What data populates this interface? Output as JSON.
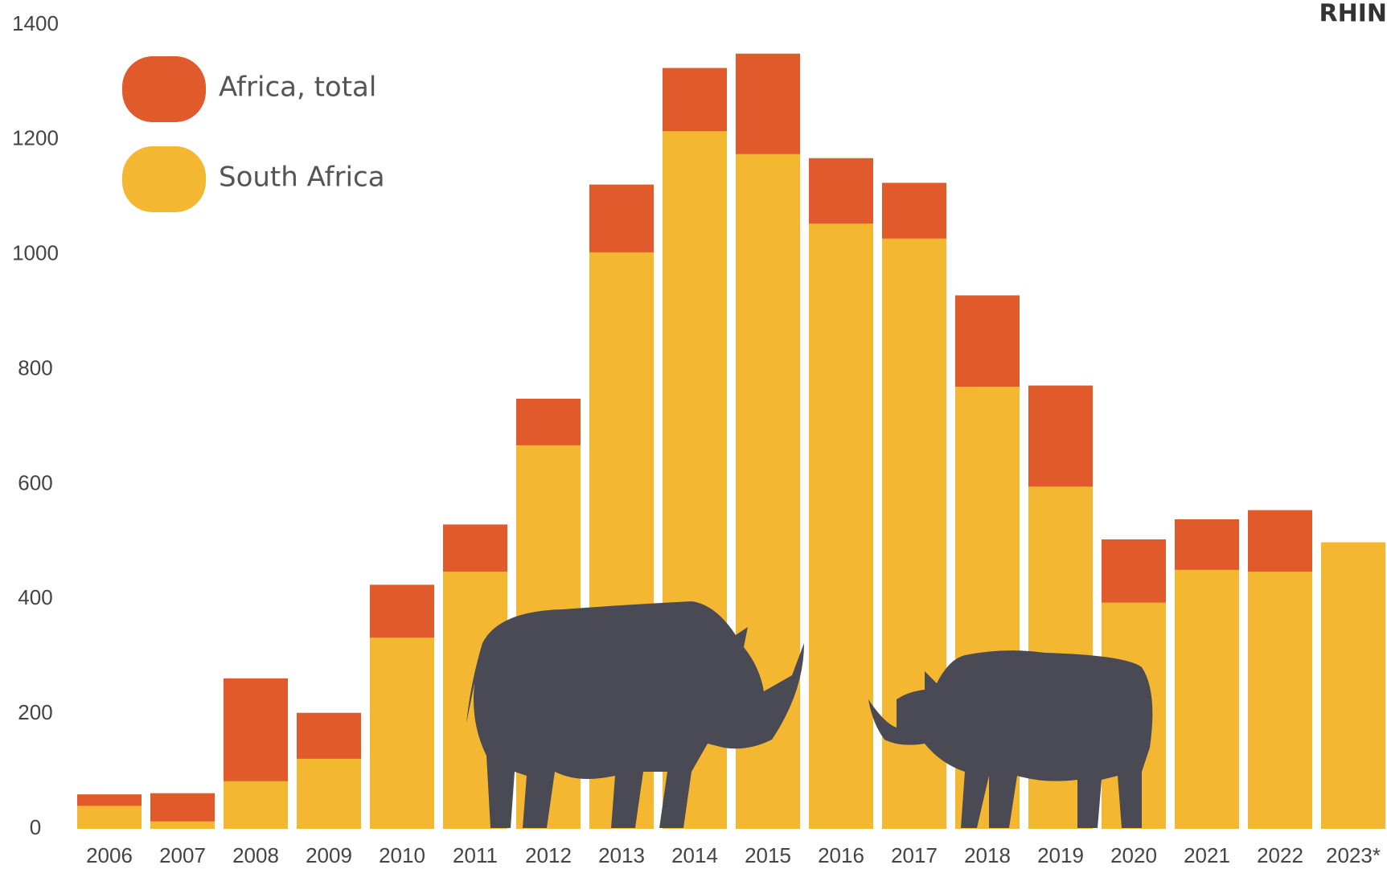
{
  "chart_data": {
    "type": "bar",
    "logo": "RHIN",
    "categories": [
      "2006",
      "2007",
      "2008",
      "2009",
      "2010",
      "2011",
      "2012",
      "2013",
      "2014",
      "2015",
      "2016",
      "2017",
      "2018",
      "2019",
      "2020",
      "2021",
      "2022",
      "2023*"
    ],
    "series": [
      {
        "name": "Africa, total",
        "color": "#e05a2b",
        "values": [
          60,
          62,
          262,
          202,
          425,
          530,
          749,
          1122,
          1325,
          1350,
          1168,
          1125,
          929,
          772,
          504,
          539,
          555,
          null
        ]
      },
      {
        "name": "South Africa",
        "color": "#f4b731",
        "values": [
          40,
          13,
          83,
          122,
          333,
          448,
          668,
          1004,
          1215,
          1175,
          1054,
          1028,
          770,
          596,
          394,
          451,
          448,
          499
        ]
      }
    ],
    "ylim": [
      0,
      1400
    ],
    "yticks": [
      0,
      200,
      400,
      600,
      800,
      1000,
      1200,
      1400
    ],
    "grid": false
  }
}
